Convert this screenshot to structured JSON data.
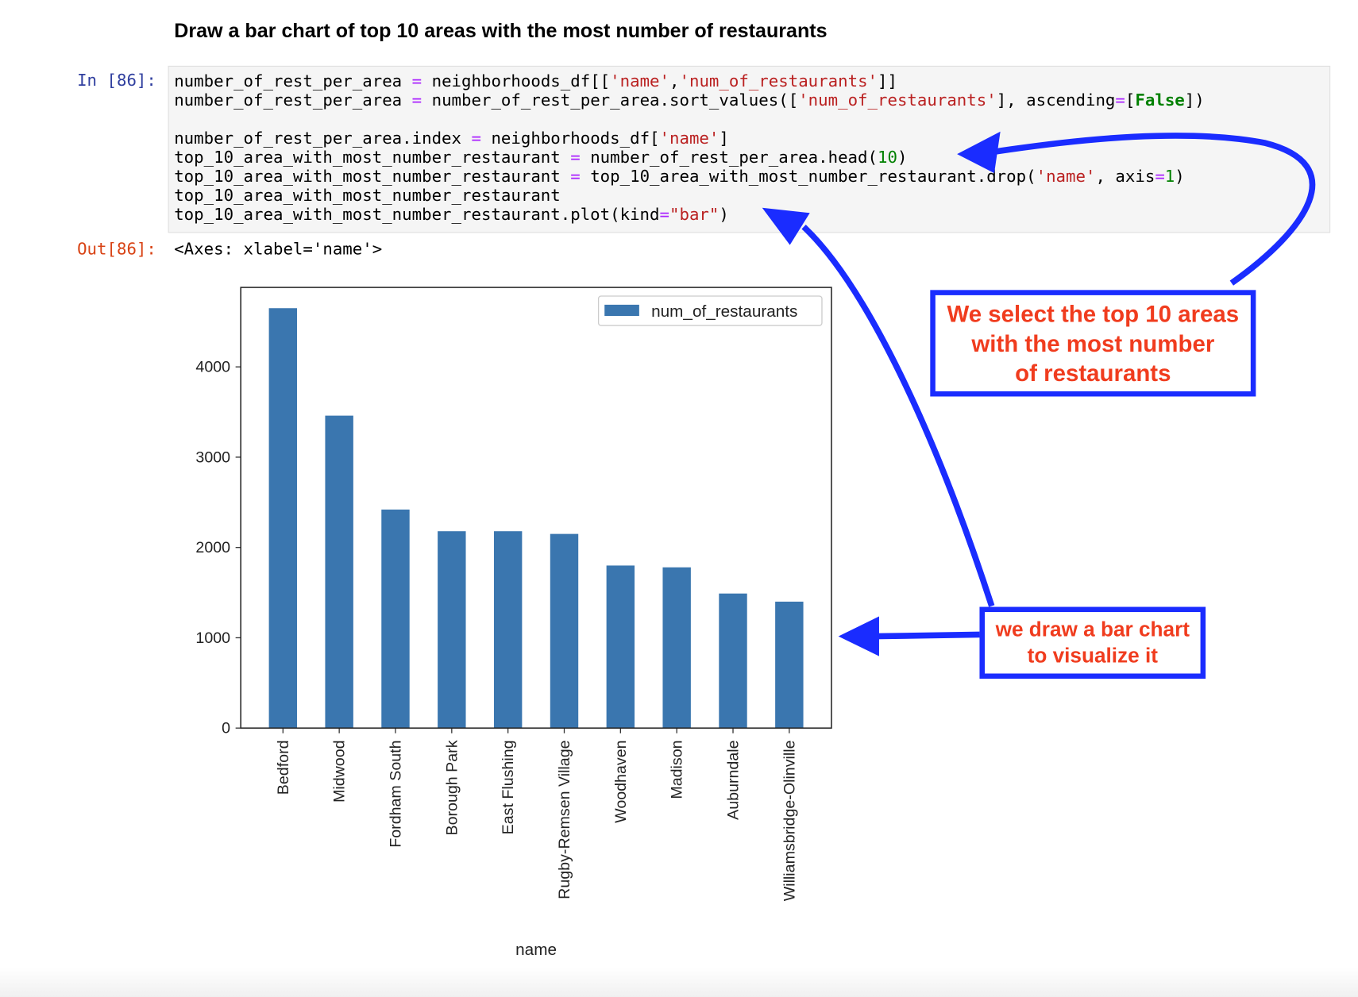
{
  "heading": "Draw a bar chart of top 10 areas with the most number of restaurants",
  "cell": {
    "in_prompt": "In [86]:",
    "out_prompt": "Out[86]:",
    "output_text": "<Axes: xlabel='name'>"
  },
  "code_lines": [
    [
      [
        "t",
        "number_of_rest_per_area "
      ],
      [
        "o",
        "="
      ],
      [
        "t",
        " neighborhoods_df[["
      ],
      [
        "s",
        "'name'"
      ],
      [
        "t",
        ","
      ],
      [
        "s",
        "'num_of_restaurants'"
      ],
      [
        "t",
        "]]"
      ]
    ],
    [
      [
        "t",
        "number_of_rest_per_area "
      ],
      [
        "o",
        "="
      ],
      [
        "t",
        " number_of_rest_per_area.sort_values(["
      ],
      [
        "s",
        "'num_of_restaurants'"
      ],
      [
        "t",
        "], ascending"
      ],
      [
        "o",
        "="
      ],
      [
        "t",
        "["
      ],
      [
        "k",
        "False"
      ],
      [
        "t",
        "])"
      ]
    ],
    [
      [
        "t",
        ""
      ]
    ],
    [
      [
        "t",
        "number_of_rest_per_area.index "
      ],
      [
        "o",
        "="
      ],
      [
        "t",
        " neighborhoods_df["
      ],
      [
        "s",
        "'name'"
      ],
      [
        "t",
        "]"
      ]
    ],
    [
      [
        "t",
        "top_10_area_with_most_number_restaurant "
      ],
      [
        "o",
        "="
      ],
      [
        "t",
        " number_of_rest_per_area.head("
      ],
      [
        "n",
        "10"
      ],
      [
        "t",
        ")"
      ]
    ],
    [
      [
        "t",
        "top_10_area_with_most_number_restaurant "
      ],
      [
        "o",
        "="
      ],
      [
        "t",
        " top_10_area_with_most_number_restaurant.drop("
      ],
      [
        "s",
        "'name'"
      ],
      [
        "t",
        ", axis"
      ],
      [
        "o",
        "="
      ],
      [
        "n",
        "1"
      ],
      [
        "t",
        ")"
      ]
    ],
    [
      [
        "t",
        "top_10_area_with_most_number_restaurant"
      ]
    ],
    [
      [
        "t",
        "top_10_area_with_most_number_restaurant.plot(kind"
      ],
      [
        "o",
        "="
      ],
      [
        "s",
        "\"bar\""
      ],
      [
        "t",
        ")"
      ]
    ]
  ],
  "chart_data": {
    "type": "bar",
    "categories": [
      "Bedford",
      "Midwood",
      "Fordham South",
      "Borough Park",
      "East Flushing",
      "Rugby-Remsen Village",
      "Woodhaven",
      "Madison",
      "Auburndale",
      "Williamsbridge-Olinville"
    ],
    "series": [
      {
        "name": "num_of_restaurants",
        "values": [
          4650,
          3460,
          2420,
          2180,
          2180,
          2150,
          1800,
          1780,
          1490,
          1400
        ],
        "color": "#3a76af"
      }
    ],
    "xlabel": "name",
    "ylabel": "",
    "yticks": [
      0,
      1000,
      2000,
      3000,
      4000
    ],
    "ylim": [
      0,
      4880
    ],
    "legend_position": "top-right",
    "grid": false
  },
  "annotations": {
    "box1_lines": [
      "We select the top 10 areas",
      "with the most number",
      "of restaurants"
    ],
    "box2_lines": [
      "we draw a bar chart",
      "to visualize it"
    ],
    "color_border": "#1a2cff",
    "color_text": "#f03c1e"
  }
}
